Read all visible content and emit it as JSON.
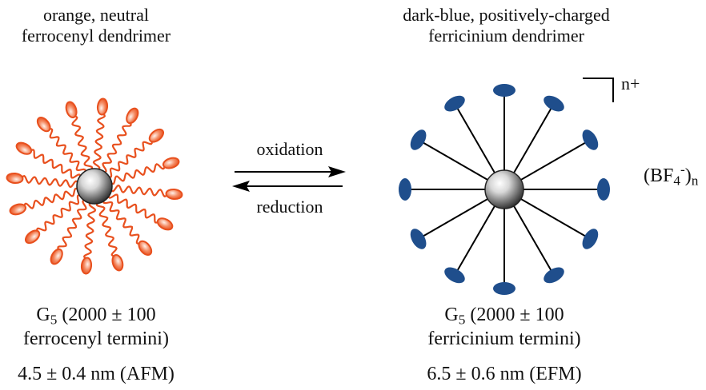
{
  "left": {
    "title_line1": "orange, neutral",
    "title_line2": "ferrocenyl dendrimer",
    "gen_prefix": "G",
    "gen_sub": "5",
    "gen_rest": " (2000 ± 100",
    "termini": "ferrocenyl termini)",
    "size": "4.5 ± 0.4 nm (AFM)",
    "terminal_color": "#e8501e"
  },
  "right": {
    "title_line1": "dark-blue, positively-charged",
    "title_line2": "ferricinium dendrimer",
    "gen_prefix": "G",
    "gen_sub": "5",
    "gen_rest": " (2000 ± 100",
    "termini": "ferricinium termini)",
    "size": "6.5 ± 0.6 nm (EFM)",
    "charge": "n+",
    "counterion_open": "(BF",
    "counterion_sub": "4",
    "counterion_sup": "-",
    "counterion_close": ")",
    "counterion_n": "n",
    "terminal_color": "#1f4e8c"
  },
  "arrows": {
    "forward_label": "oxidation",
    "reverse_label": "reduction"
  }
}
